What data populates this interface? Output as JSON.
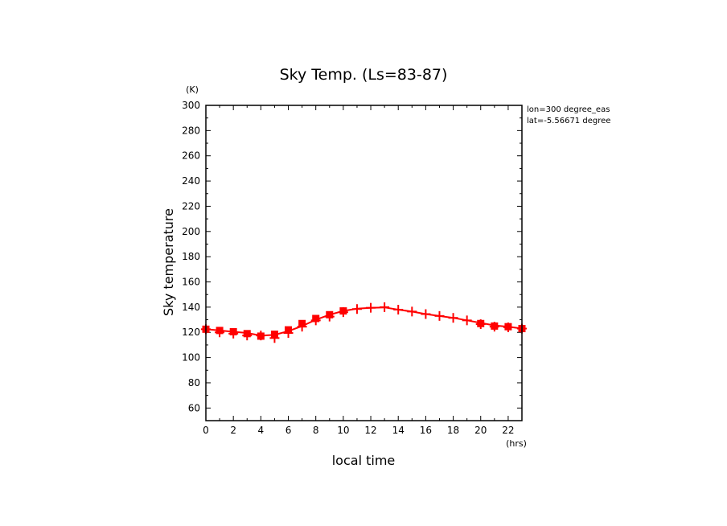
{
  "chart_data": {
    "type": "line",
    "title": "Sky Temp. (Ls=83-87)",
    "xlabel": "local time",
    "ylabel": "Sky temperature",
    "x_unit": "(hrs)",
    "y_unit": "(K)",
    "xlim": [
      0,
      23
    ],
    "ylim": [
      50,
      300
    ],
    "x_ticks": [
      0,
      2,
      4,
      6,
      8,
      10,
      12,
      14,
      16,
      18,
      20,
      22
    ],
    "y_ticks": [
      60,
      80,
      100,
      120,
      140,
      160,
      180,
      200,
      220,
      240,
      260,
      280,
      300
    ],
    "grid": false,
    "line_color": "#ff0000",
    "annotations": [
      "lon=300 degree_eas",
      "lat=-5.56671 degree"
    ],
    "series": [
      {
        "type": "line",
        "x": [
          0,
          1,
          2,
          3,
          4,
          5,
          6,
          7,
          8,
          9,
          10,
          11,
          12,
          13,
          14,
          15,
          16,
          17,
          18,
          19,
          20,
          21,
          22,
          23
        ],
        "y": [
          122.5,
          121.5,
          120.5,
          119.5,
          117.5,
          118.0,
          121.0,
          125.0,
          130.0,
          134.0,
          137.0,
          138.8,
          139.5,
          139.8,
          138.0,
          136.5,
          134.5,
          133.0,
          131.5,
          129.5,
          127.5,
          125.5,
          124.5,
          123.0
        ]
      },
      {
        "type": "scatter",
        "marker": "square",
        "x": [
          0,
          1,
          2,
          3,
          4,
          5,
          6,
          7,
          8,
          9,
          10,
          20,
          21,
          22,
          23
        ],
        "y": [
          122.5,
          121.5,
          120.5,
          119.0,
          117.0,
          118.5,
          122.0,
          127.0,
          131.0,
          134.0,
          137.0,
          127.0,
          125.0,
          124.5,
          123.0
        ]
      },
      {
        "type": "scatter",
        "marker": "plus",
        "x": [
          0,
          1,
          2,
          3,
          4,
          5,
          6,
          7,
          8,
          9,
          10,
          11,
          12,
          13,
          14,
          15,
          16,
          17,
          18,
          19,
          20,
          21,
          22,
          23
        ],
        "y": [
          122.5,
          120.0,
          119.0,
          117.5,
          117.5,
          115.5,
          119.5,
          124.5,
          129.5,
          132.5,
          136.0,
          138.5,
          139.5,
          140.0,
          138.0,
          136.5,
          134.5,
          133.0,
          131.5,
          129.5,
          126.5,
          124.5,
          124.0,
          123.0
        ]
      }
    ]
  }
}
